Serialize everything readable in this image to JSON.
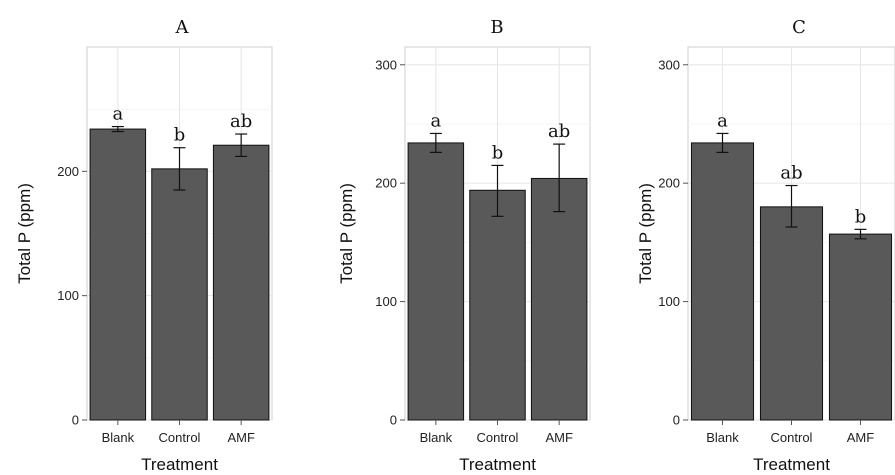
{
  "chart_data": [
    {
      "type": "bar",
      "title": "A",
      "xlabel": "Treatment",
      "ylabel": "Total P (ppm)",
      "categories": [
        "Blank",
        "Control",
        "AMF"
      ],
      "values": [
        234,
        202,
        221
      ],
      "error_low": [
        232,
        185,
        212
      ],
      "error_high": [
        236,
        219,
        230
      ],
      "sig_letters": [
        "a",
        "b",
        "ab"
      ],
      "ylim": [
        0,
        300
      ],
      "yticks": [
        0,
        100,
        200
      ],
      "ytick_labels": [
        "0",
        "100",
        "200"
      ],
      "grid": true
    },
    {
      "type": "bar",
      "title": "B",
      "xlabel": "Treatment",
      "ylabel": "Total P (ppm)",
      "categories": [
        "Blank",
        "Control",
        "AMF"
      ],
      "values": [
        234,
        194,
        204
      ],
      "error_low": [
        226,
        172,
        176
      ],
      "error_high": [
        242,
        215,
        233
      ],
      "sig_letters": [
        "a",
        "b",
        "ab"
      ],
      "ylim": [
        0,
        315
      ],
      "yticks": [
        0,
        100,
        200,
        300
      ],
      "ytick_labels": [
        "0",
        "100",
        "200",
        "300"
      ],
      "grid": true
    },
    {
      "type": "bar",
      "title": "C",
      "xlabel": "Treatment",
      "ylabel": "Total P (ppm)",
      "categories": [
        "Blank",
        "Control",
        "AMF"
      ],
      "values": [
        234,
        180,
        157
      ],
      "error_low": [
        226,
        163,
        153
      ],
      "error_high": [
        242,
        198,
        161
      ],
      "sig_letters": [
        "a",
        "ab",
        "b"
      ],
      "ylim": [
        0,
        315
      ],
      "yticks": [
        0,
        100,
        200,
        300
      ],
      "ytick_labels": [
        "0",
        "100",
        "200",
        "300"
      ],
      "grid": true
    }
  ]
}
